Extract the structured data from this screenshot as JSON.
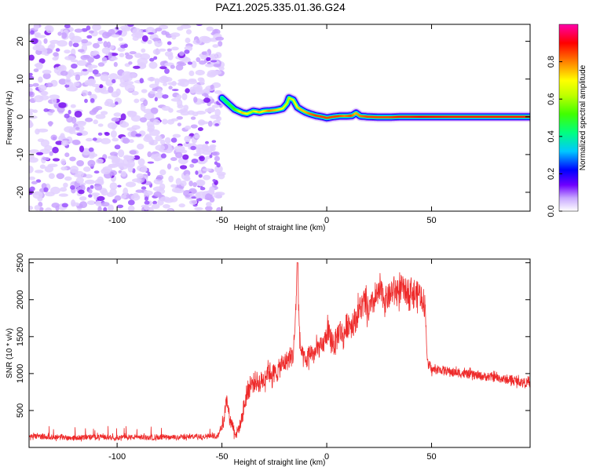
{
  "title": "PAZ1.2025.335.01.36.G24",
  "chart_data": [
    {
      "type": "heatmap",
      "xlabel": "Height of straight line (km)",
      "ylabel": "Frequency (Hz)",
      "xlim": [
        -142,
        97
      ],
      "ylim": [
        -25,
        24.5
      ],
      "xticks": [
        -100,
        -50,
        0,
        50
      ],
      "yticks": [
        -20,
        -10,
        0,
        10,
        20
      ],
      "colorbar": {
        "label": "Normalized spectral amplitude",
        "range": [
          0,
          1
        ],
        "ticks": [
          "0.0",
          "0.2",
          "0.4",
          "0.6",
          "0.8"
        ],
        "colors": [
          "#ffffff",
          "#6f00ff",
          "#0000ff",
          "#00c8ff",
          "#00ff80",
          "#80ff00",
          "#ffff00",
          "#ff8000",
          "#ff0000",
          "#ff00aa"
        ]
      },
      "noise_region_x": [
        -142,
        -50
      ],
      "ridge": {
        "x": [
          -50,
          -47,
          -44,
          -42,
          -40,
          -38,
          -35,
          -32,
          -30,
          -27,
          -24,
          -21,
          -19,
          -18,
          -16,
          -14,
          -12,
          -10,
          -8,
          -5,
          -2,
          0,
          3,
          6,
          9,
          12,
          14,
          16,
          20,
          25,
          30,
          35,
          40,
          45,
          60,
          80,
          97
        ],
        "y": [
          5,
          3.5,
          2,
          1.5,
          1,
          0.8,
          1.5,
          1.2,
          1.5,
          1.6,
          1.8,
          2.2,
          3.5,
          5,
          4.5,
          2.5,
          1.8,
          1.2,
          0.8,
          0.3,
          0,
          -0.3,
          0,
          0.2,
          0.2,
          0.3,
          1,
          0.2,
          0,
          -0.1,
          -0.1,
          0,
          0,
          0,
          0,
          0,
          0
        ],
        "amp": [
          0.4,
          0.45,
          0.5,
          0.6,
          0.75,
          0.7,
          0.6,
          0.75,
          0.7,
          0.8,
          0.75,
          0.7,
          0.65,
          0.6,
          0.65,
          0.7,
          0.75,
          0.75,
          0.8,
          0.85,
          0.85,
          0.85,
          0.85,
          0.85,
          0.8,
          0.85,
          0.75,
          0.8,
          0.85,
          0.85,
          0.85,
          0.88,
          0.88,
          0.9,
          0.88,
          0.88,
          0.88
        ]
      }
    },
    {
      "type": "line",
      "xlabel": "Height of straight line (km)",
      "ylabel": "SNR (10 * v/v)",
      "xlim": [
        -142,
        97
      ],
      "ylim": [
        0,
        2550
      ],
      "xticks": [
        -100,
        -50,
        0,
        50
      ],
      "yticks": [
        500,
        1000,
        1500,
        2000,
        2500
      ],
      "color": "#ee2a2a",
      "series": [
        {
          "x": [
            -142,
            -130,
            -120,
            -110,
            -100,
            -90,
            -80,
            -70,
            -60,
            -52,
            -49,
            -48,
            -47,
            -46,
            -45,
            -44,
            -43,
            -41,
            -40,
            -38,
            -36,
            -34,
            -32,
            -30,
            -28,
            -26,
            -24,
            -22,
            -20,
            -18,
            -16,
            -15,
            -14,
            -13,
            -12,
            -10,
            -8,
            -6,
            -4,
            -2,
            0,
            2,
            4,
            6,
            8,
            10,
            12,
            14,
            16,
            18,
            20,
            22,
            24,
            26,
            28,
            30,
            32,
            34,
            36,
            38,
            40,
            42,
            44,
            46,
            47,
            48,
            50,
            55,
            60,
            65,
            70,
            75,
            80,
            85,
            90,
            97
          ],
          "y": [
            150,
            140,
            130,
            145,
            135,
            140,
            130,
            140,
            150,
            160,
            350,
            720,
            520,
            370,
            320,
            210,
            190,
            330,
            470,
            750,
            850,
            900,
            880,
            920,
            1050,
            1000,
            1000,
            1100,
            1150,
            1200,
            1250,
            1700,
            2500,
            1500,
            1250,
            1150,
            1300,
            1250,
            1350,
            1350,
            1550,
            1450,
            1400,
            1600,
            1500,
            1700,
            1650,
            1750,
            1900,
            1950,
            1850,
            1950,
            2050,
            2100,
            2000,
            2050,
            2150,
            2100,
            2150,
            2100,
            2150,
            2050,
            2100,
            2000,
            1900,
            1150,
            1050,
            1050,
            1020,
            1000,
            980,
            960,
            950,
            920,
            900,
            870
          ]
        }
      ]
    }
  ]
}
